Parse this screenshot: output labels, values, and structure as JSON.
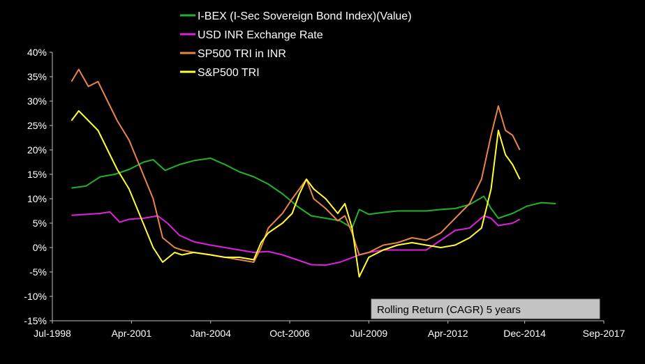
{
  "chart_data": {
    "type": "line",
    "title": "",
    "xlabel": "",
    "ylabel": "",
    "xlim": [
      "1998-07-01",
      "2017-09-01"
    ],
    "ylim": [
      -15,
      40
    ],
    "y_ticks": [
      -15,
      -10,
      -5,
      0,
      5,
      10,
      15,
      20,
      25,
      30,
      35,
      40
    ],
    "y_tick_labels": [
      "-15%",
      "-10%",
      "-5%",
      "0%",
      "5%",
      "10%",
      "15%",
      "20%",
      "25%",
      "30%",
      "35%",
      "40%"
    ],
    "x_ticks": [
      {
        "date": "1998-07-01",
        "label": "Jul-1998"
      },
      {
        "date": "2001-04-01",
        "label": "Apr-2001"
      },
      {
        "date": "2004-01-01",
        "label": "Jan-2004"
      },
      {
        "date": "2006-10-01",
        "label": "Oct-2006"
      },
      {
        "date": "2009-07-01",
        "label": "Jul-2009"
      },
      {
        "date": "2012-04-01",
        "label": "Apr-2012"
      },
      {
        "date": "2014-12-01",
        "label": "Dec-2014"
      },
      {
        "date": "2017-09-01",
        "label": "Sep-2017"
      }
    ],
    "legend_position": "top-center",
    "annotation": "Rolling Return (CAGR) 5 years",
    "grid": false,
    "series": [
      {
        "name": "I-BEX (I-Sec Sovereign Bond Index)(Value)",
        "color": "#22b22a",
        "points": [
          [
            "1999-03-01",
            12.2
          ],
          [
            "1999-09-01",
            12.6
          ],
          [
            "2000-03-01",
            14.5
          ],
          [
            "2000-09-01",
            15.0
          ],
          [
            "2001-03-01",
            16.0
          ],
          [
            "2001-09-01",
            17.5
          ],
          [
            "2002-01-01",
            18.0
          ],
          [
            "2002-06-01",
            15.8
          ],
          [
            "2002-12-01",
            17.0
          ],
          [
            "2003-06-01",
            17.8
          ],
          [
            "2004-01-01",
            18.3
          ],
          [
            "2004-07-01",
            17.0
          ],
          [
            "2005-01-01",
            15.5
          ],
          [
            "2005-07-01",
            14.5
          ],
          [
            "2006-01-01",
            13.0
          ],
          [
            "2006-07-01",
            11.0
          ],
          [
            "2007-01-01",
            8.5
          ],
          [
            "2007-07-01",
            6.5
          ],
          [
            "2008-01-01",
            6.0
          ],
          [
            "2008-07-01",
            5.5
          ],
          [
            "2008-12-01",
            4.0
          ],
          [
            "2009-03-01",
            7.8
          ],
          [
            "2009-07-01",
            6.8
          ],
          [
            "2010-01-01",
            7.2
          ],
          [
            "2010-07-01",
            7.5
          ],
          [
            "2011-01-01",
            7.5
          ],
          [
            "2011-07-01",
            7.5
          ],
          [
            "2012-01-01",
            7.8
          ],
          [
            "2012-07-01",
            8.0
          ],
          [
            "2013-01-01",
            8.8
          ],
          [
            "2013-07-01",
            10.5
          ],
          [
            "2013-10-01",
            8.0
          ],
          [
            "2014-01-01",
            6.0
          ],
          [
            "2014-07-01",
            7.0
          ],
          [
            "2015-01-01",
            8.5
          ],
          [
            "2015-07-01",
            9.2
          ],
          [
            "2016-01-01",
            9.0
          ]
        ]
      },
      {
        "name": "USD INR Exchange Rate",
        "color": "#e020e0",
        "points": [
          [
            "1999-03-01",
            6.6
          ],
          [
            "1999-09-01",
            6.8
          ],
          [
            "2000-03-01",
            7.0
          ],
          [
            "2000-07-01",
            7.3
          ],
          [
            "2000-11-01",
            5.2
          ],
          [
            "2001-03-01",
            5.8
          ],
          [
            "2001-09-01",
            6.0
          ],
          [
            "2002-03-01",
            6.5
          ],
          [
            "2002-07-01",
            5.0
          ],
          [
            "2002-12-01",
            2.5
          ],
          [
            "2003-06-01",
            1.2
          ],
          [
            "2004-01-01",
            0.5
          ],
          [
            "2004-07-01",
            0.0
          ],
          [
            "2005-01-01",
            -0.5
          ],
          [
            "2005-07-01",
            -1.0
          ],
          [
            "2006-01-01",
            -0.8
          ],
          [
            "2006-07-01",
            -1.5
          ],
          [
            "2007-01-01",
            -2.5
          ],
          [
            "2007-07-01",
            -3.5
          ],
          [
            "2008-01-01",
            -3.6
          ],
          [
            "2008-07-01",
            -3.0
          ],
          [
            "2009-03-01",
            -1.5
          ],
          [
            "2009-07-01",
            -1.0
          ],
          [
            "2010-01-01",
            -0.5
          ],
          [
            "2010-07-01",
            -0.5
          ],
          [
            "2011-01-01",
            -0.5
          ],
          [
            "2011-07-01",
            -0.5
          ],
          [
            "2012-01-01",
            1.5
          ],
          [
            "2012-07-01",
            3.5
          ],
          [
            "2013-01-01",
            4.0
          ],
          [
            "2013-07-01",
            6.5
          ],
          [
            "2013-10-01",
            6.0
          ],
          [
            "2014-01-01",
            4.5
          ],
          [
            "2014-07-01",
            5.0
          ],
          [
            "2014-10-01",
            5.8
          ]
        ]
      },
      {
        "name": "SP500 TRI in INR",
        "color": "#e8854a",
        "points": [
          [
            "1999-03-01",
            34.0
          ],
          [
            "1999-06-01",
            36.5
          ],
          [
            "1999-10-01",
            33.0
          ],
          [
            "2000-02-01",
            34.0
          ],
          [
            "2000-06-01",
            30.0
          ],
          [
            "2000-10-01",
            26.0
          ],
          [
            "2001-03-01",
            22.0
          ],
          [
            "2001-08-01",
            16.0
          ],
          [
            "2002-01-01",
            10.0
          ],
          [
            "2002-05-01",
            2.0
          ],
          [
            "2002-10-01",
            0.0
          ],
          [
            "2003-01-01",
            -0.5
          ],
          [
            "2003-06-01",
            -1.0
          ],
          [
            "2004-01-01",
            -1.5
          ],
          [
            "2004-07-01",
            -2.0
          ],
          [
            "2005-01-01",
            -2.5
          ],
          [
            "2005-07-01",
            -3.0
          ],
          [
            "2005-10-01",
            0.0
          ],
          [
            "2006-01-01",
            4.0
          ],
          [
            "2006-07-01",
            7.0
          ],
          [
            "2006-11-01",
            10.0
          ],
          [
            "2007-02-01",
            12.0
          ],
          [
            "2007-05-01",
            14.0
          ],
          [
            "2007-08-01",
            10.0
          ],
          [
            "2008-01-01",
            8.0
          ],
          [
            "2008-06-01",
            5.5
          ],
          [
            "2008-09-01",
            6.5
          ],
          [
            "2008-12-01",
            3.0
          ],
          [
            "2009-03-01",
            -1.5
          ],
          [
            "2009-07-01",
            -1.0
          ],
          [
            "2010-01-01",
            0.5
          ],
          [
            "2010-07-01",
            1.0
          ],
          [
            "2011-01-01",
            2.0
          ],
          [
            "2011-07-01",
            1.5
          ],
          [
            "2012-01-01",
            3.0
          ],
          [
            "2012-07-01",
            6.0
          ],
          [
            "2013-01-01",
            9.0
          ],
          [
            "2013-06-01",
            14.0
          ],
          [
            "2013-10-01",
            23.0
          ],
          [
            "2014-01-01",
            29.0
          ],
          [
            "2014-04-01",
            24.0
          ],
          [
            "2014-07-01",
            23.0
          ],
          [
            "2014-10-01",
            20.0
          ]
        ]
      },
      {
        "name": "S&P500 TRI",
        "color": "#ffff33",
        "points": [
          [
            "1999-03-01",
            26.0
          ],
          [
            "1999-06-01",
            28.0
          ],
          [
            "1999-10-01",
            26.0
          ],
          [
            "2000-02-01",
            24.0
          ],
          [
            "2000-06-01",
            20.0
          ],
          [
            "2000-10-01",
            16.0
          ],
          [
            "2001-03-01",
            12.0
          ],
          [
            "2001-08-01",
            6.0
          ],
          [
            "2002-01-01",
            0.0
          ],
          [
            "2002-05-01",
            -3.0
          ],
          [
            "2002-10-01",
            -1.0
          ],
          [
            "2003-01-01",
            -1.5
          ],
          [
            "2003-06-01",
            -1.0
          ],
          [
            "2004-01-01",
            -1.5
          ],
          [
            "2004-07-01",
            -2.0
          ],
          [
            "2005-01-01",
            -2.0
          ],
          [
            "2005-07-01",
            -2.5
          ],
          [
            "2005-10-01",
            1.0
          ],
          [
            "2006-01-01",
            3.0
          ],
          [
            "2006-07-01",
            5.0
          ],
          [
            "2006-11-01",
            7.0
          ],
          [
            "2007-02-01",
            11.0
          ],
          [
            "2007-05-01",
            14.0
          ],
          [
            "2007-08-01",
            12.0
          ],
          [
            "2008-01-01",
            10.0
          ],
          [
            "2008-06-01",
            7.0
          ],
          [
            "2008-09-01",
            9.0
          ],
          [
            "2008-12-01",
            4.0
          ],
          [
            "2009-03-01",
            -6.0
          ],
          [
            "2009-07-01",
            -2.0
          ],
          [
            "2010-01-01",
            -0.5
          ],
          [
            "2010-07-01",
            0.5
          ],
          [
            "2011-01-01",
            1.0
          ],
          [
            "2011-07-01",
            0.5
          ],
          [
            "2012-01-01",
            0.0
          ],
          [
            "2012-07-01",
            0.5
          ],
          [
            "2013-01-01",
            2.0
          ],
          [
            "2013-06-01",
            4.0
          ],
          [
            "2013-10-01",
            12.0
          ],
          [
            "2014-01-01",
            24.0
          ],
          [
            "2014-04-01",
            19.0
          ],
          [
            "2014-07-01",
            17.0
          ],
          [
            "2014-10-01",
            14.0
          ]
        ]
      }
    ]
  }
}
